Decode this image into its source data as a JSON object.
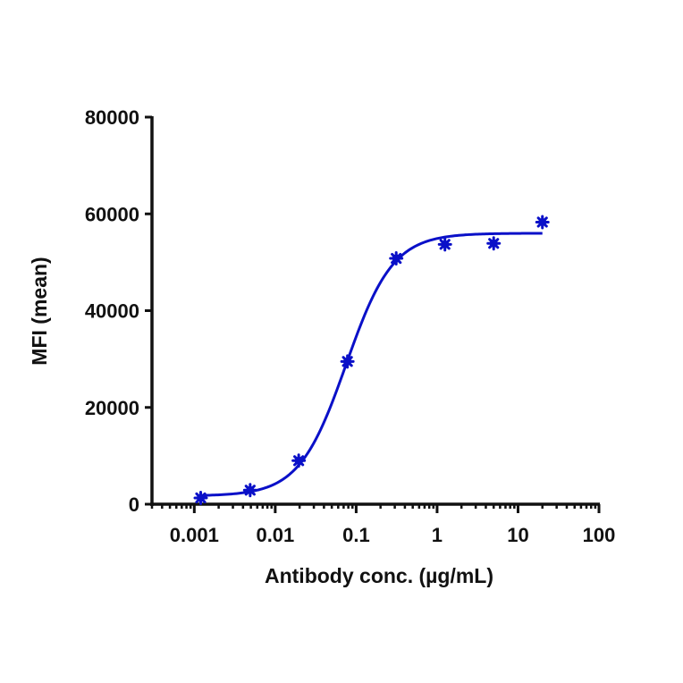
{
  "chart_data": {
    "type": "scatter",
    "title": "",
    "xlabel": "Antibody conc. (µg/mL)",
    "ylabel": "MFI (mean)",
    "xscale": "log",
    "xlim": [
      0.0003,
      100
    ],
    "ylim": [
      0,
      80000
    ],
    "x_ticks": [
      "0.001",
      "0.01",
      "0.1",
      "1",
      "10",
      "100"
    ],
    "x_tick_values": [
      0.001,
      0.01,
      0.1,
      1,
      10,
      100
    ],
    "y_ticks": [
      "0",
      "20000",
      "40000",
      "60000",
      "80000"
    ],
    "y_tick_values": [
      0,
      20000,
      40000,
      60000,
      80000
    ],
    "grid": false,
    "legend": null,
    "series": [
      {
        "name": "MFI",
        "color": "#0a10c8",
        "marker": "asterisk",
        "x": [
          0.0012,
          0.0049,
          0.0195,
          0.078,
          0.3125,
          1.25,
          5,
          20
        ],
        "y": [
          1300,
          2900,
          9000,
          29500,
          50800,
          53700,
          53900,
          58300
        ],
        "fit": {
          "type": "4PL",
          "bottom": 1700,
          "top": 56000,
          "ec50": 0.075,
          "hill": 1.5
        }
      }
    ]
  }
}
